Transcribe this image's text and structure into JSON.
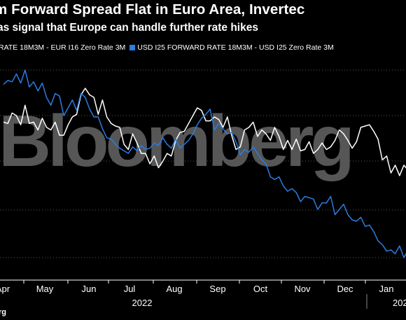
{
  "header": {
    "title": "m Forward Spread Flat in Euro Area, Invertec",
    "subtitle": "as signal that Europe can handle further rate hikes"
  },
  "legend": {
    "series1_label": "RATE 18M3M - EUR I16 Zero Rate 3M",
    "series2_label": "USD I25 FORWARD RATE 18M3M - USD I25 Zero Rate 3M"
  },
  "watermark": "Bloomberg",
  "source": "rg",
  "colors": {
    "series1": "#ffffff",
    "series2": "#2a7de1",
    "grid": "#5a5a5a",
    "background": "#000000"
  },
  "chart_data": {
    "type": "line",
    "x_tick_labels": [
      "Apr",
      "May",
      "Jun",
      "Jul",
      "Aug",
      "Sep",
      "Oct",
      "Nov",
      "Dec",
      "Jan"
    ],
    "x_year_labels": [
      "2022",
      "202"
    ],
    "grid": "horizontal",
    "series": [
      {
        "name": "RATE 18M3M - EUR I16 Zero Rate 3M",
        "color": "#ffffff",
        "x": [
          0,
          0.1,
          0.2,
          0.3,
          0.4,
          0.5,
          0.6,
          0.7,
          0.8,
          0.9,
          1.0,
          1.1,
          1.2,
          1.3,
          1.4,
          1.5,
          1.6,
          1.7,
          1.8,
          1.9,
          2.0,
          2.1,
          2.2,
          2.3,
          2.4,
          2.5,
          2.6,
          2.7,
          2.8,
          2.9,
          3.0,
          3.1,
          3.2,
          3.3,
          3.4,
          3.5,
          3.6,
          3.7,
          3.8,
          3.9,
          4.0,
          4.1,
          4.2,
          4.3,
          4.4,
          4.5,
          4.6,
          4.7,
          4.8,
          4.9,
          5.0,
          5.1,
          5.2,
          5.3,
          5.4,
          5.5,
          5.6,
          5.7,
          5.8,
          5.9,
          6.0,
          6.1,
          6.2,
          6.3,
          6.4,
          6.5,
          6.6,
          6.7,
          6.8,
          6.9,
          7.0,
          7.1,
          7.2,
          7.3,
          7.4,
          7.5,
          7.6,
          7.7,
          7.8,
          7.9,
          8.0,
          8.1,
          8.2,
          8.3,
          8.4,
          8.5,
          8.6,
          8.7,
          8.8,
          8.9,
          9.0,
          9.1,
          9.2,
          9.3,
          9.4,
          9.5
        ],
        "values": [
          0.42,
          0.41,
          0.49,
          0.47,
          0.4,
          0.55,
          0.41,
          0.42,
          0.36,
          0.45,
          0.38,
          0.36,
          0.42,
          0.32,
          0.32,
          0.4,
          0.46,
          0.48,
          0.63,
          0.68,
          0.63,
          0.61,
          0.48,
          0.59,
          0.46,
          0.41,
          0.39,
          0.38,
          0.25,
          0.21,
          0.33,
          0.26,
          0.18,
          0.18,
          0.1,
          0.16,
          0.07,
          0.12,
          0.18,
          0.16,
          0.28,
          0.34,
          0.35,
          0.41,
          0.47,
          0.53,
          0.51,
          0.43,
          0.43,
          0.46,
          0.44,
          0.38,
          0.46,
          0.32,
          0.21,
          0.23,
          0.36,
          0.38,
          0.42,
          0.31,
          0.36,
          0.33,
          0.28,
          0.38,
          0.31,
          0.21,
          0.28,
          0.21,
          0.29,
          0.2,
          0.21,
          0.27,
          0.18,
          0.21,
          0.26,
          0.21,
          0.23,
          0.28,
          0.36,
          0.33,
          0.28,
          0.22,
          0.27,
          0.38,
          0.39,
          0.4,
          0.35,
          0.29,
          0.13,
          0.16,
          0.03,
          0.09,
          0.01,
          0.09,
          0.05,
          0.12
        ]
      },
      {
        "name": "USD I25 FORWARD RATE 18M3M - USD I25 Zero Rate 3M",
        "color": "#2a7de1",
        "x": [
          0,
          0.1,
          0.2,
          0.3,
          0.4,
          0.5,
          0.6,
          0.7,
          0.8,
          0.9,
          1.0,
          1.1,
          1.2,
          1.3,
          1.4,
          1.5,
          1.6,
          1.7,
          1.8,
          1.9,
          2.0,
          2.1,
          2.2,
          2.3,
          2.4,
          2.5,
          2.6,
          2.7,
          2.8,
          2.9,
          3.0,
          3.1,
          3.2,
          3.3,
          3.4,
          3.5,
          3.6,
          3.7,
          3.8,
          3.9,
          4.0,
          4.1,
          4.2,
          4.3,
          4.4,
          4.5,
          4.6,
          4.7,
          4.8,
          4.9,
          5.0,
          5.1,
          5.2,
          5.3,
          5.4,
          5.5,
          5.6,
          5.7,
          5.8,
          5.9,
          6.0,
          6.1,
          6.2,
          6.3,
          6.4,
          6.5,
          6.6,
          6.7,
          6.8,
          6.9,
          7.0,
          7.1,
          7.2,
          7.3,
          7.4,
          7.5,
          7.6,
          7.7,
          7.8,
          7.9,
          8.0,
          8.1,
          8.2,
          8.3,
          8.4,
          8.5,
          8.6,
          8.7,
          8.8,
          8.9,
          9.0,
          9.1,
          9.2,
          9.3,
          9.4,
          9.5
        ],
        "values": [
          0.71,
          0.74,
          0.73,
          0.79,
          0.72,
          0.82,
          0.69,
          0.73,
          0.66,
          0.72,
          0.61,
          0.55,
          0.64,
          0.62,
          0.47,
          0.53,
          0.59,
          0.51,
          0.64,
          0.61,
          0.52,
          0.46,
          0.46,
          0.37,
          0.3,
          0.29,
          0.25,
          0.22,
          0.2,
          0.18,
          0.23,
          0.2,
          0.24,
          0.21,
          0.22,
          0.26,
          0.24,
          0.3,
          0.25,
          0.22,
          0.29,
          0.22,
          0.25,
          0.28,
          0.33,
          0.4,
          0.45,
          0.48,
          0.52,
          0.36,
          0.41,
          0.37,
          0.33,
          0.34,
          0.27,
          0.17,
          0.21,
          0.19,
          0.23,
          0.18,
          0.13,
          0.1,
          0.0,
          -0.02,
          0.0,
          -0.07,
          -0.11,
          -0.09,
          -0.12,
          -0.19,
          -0.15,
          -0.16,
          -0.17,
          -0.25,
          -0.2,
          -0.2,
          -0.15,
          -0.29,
          -0.25,
          -0.21,
          -0.29,
          -0.33,
          -0.34,
          -0.31,
          -0.38,
          -0.37,
          -0.42,
          -0.49,
          -0.52,
          -0.57,
          -0.56,
          -0.59,
          -0.53,
          -0.62,
          -0.56,
          -0.57
        ]
      }
    ]
  }
}
